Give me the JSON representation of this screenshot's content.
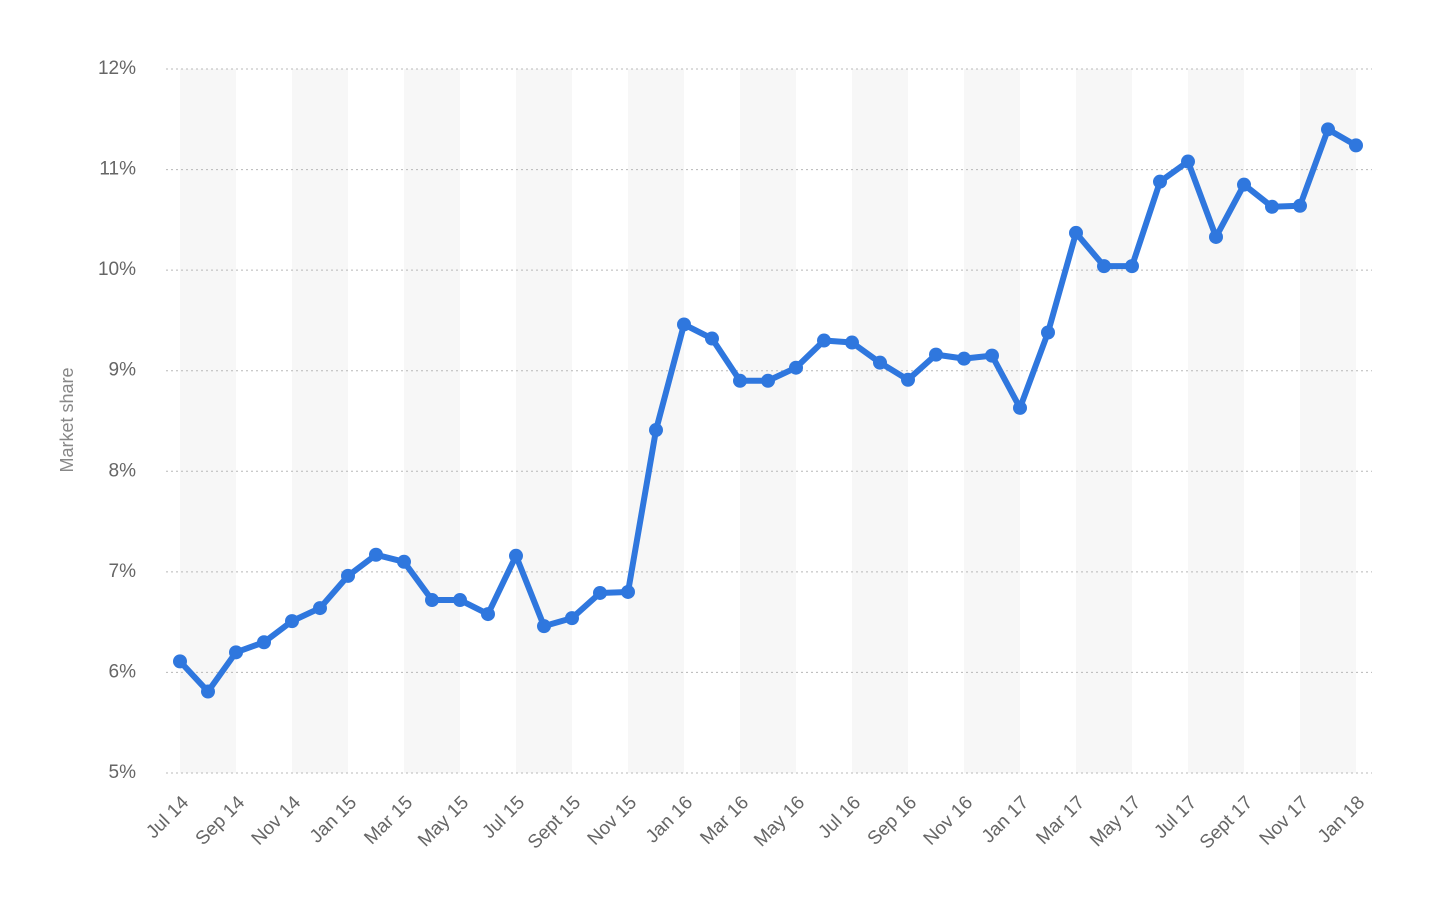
{
  "chart_data": {
    "type": "line",
    "y_label": "Market share",
    "categories": [
      "Jul 14",
      null,
      "Sep 14",
      null,
      "Nov 14",
      null,
      "Jan 15",
      null,
      "Mar 15",
      null,
      "May 15",
      null,
      "Jul 15",
      null,
      "Sept 15",
      null,
      "Nov 15",
      null,
      "Jan 16",
      null,
      "Mar 16",
      null,
      "May 16",
      null,
      "Jul 16",
      null,
      "Sep 16",
      null,
      "Nov 16",
      null,
      "Jan 17",
      null,
      "Mar 17",
      null,
      "May 17",
      null,
      "Jul 17",
      null,
      "Sept 17",
      null,
      "Nov 17",
      null,
      "Jan 18"
    ],
    "values": [
      6.11,
      5.81,
      6.2,
      6.3,
      6.51,
      6.64,
      6.96,
      7.17,
      7.1,
      6.72,
      6.72,
      6.58,
      7.16,
      6.46,
      6.54,
      6.79,
      6.8,
      8.41,
      9.46,
      9.32,
      8.9,
      8.9,
      9.03,
      9.3,
      9.28,
      9.08,
      8.91,
      9.16,
      9.12,
      9.15,
      8.63,
      9.38,
      10.37,
      10.04,
      10.04,
      10.88,
      11.08,
      10.33,
      10.85,
      10.63,
      10.64,
      11.4,
      11.24
    ],
    "color": "#2f77de",
    "ylim": [
      5,
      12
    ],
    "yticks": [
      {
        "value": 5,
        "label": "5%"
      },
      {
        "value": 6,
        "label": "6%"
      },
      {
        "value": 7,
        "label": "7%"
      },
      {
        "value": 8,
        "label": "8%"
      },
      {
        "value": 9,
        "label": "9%"
      },
      {
        "value": 10,
        "label": "10%"
      },
      {
        "value": 11,
        "label": "11%"
      },
      {
        "value": 12,
        "label": "12%"
      }
    ],
    "grid": true
  }
}
